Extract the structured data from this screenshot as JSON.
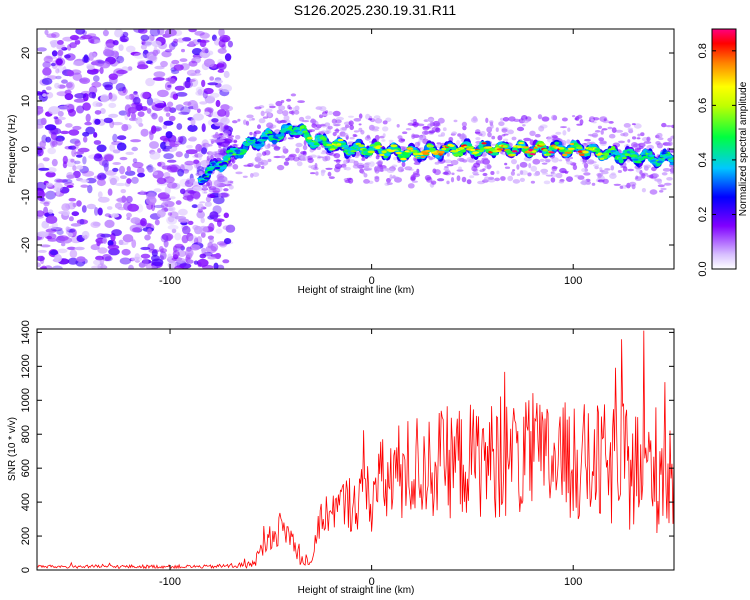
{
  "title": "S126.2025.230.19.31.R11",
  "chart_data": [
    {
      "type": "heatmap",
      "xlabel": "Height of straight line (km)",
      "ylabel": "Frequency (Hz)",
      "xlim": [
        -166,
        150
      ],
      "ylim": [
        -25,
        25
      ],
      "xticks": [
        -100,
        0,
        100
      ],
      "yticks": [
        -20,
        -10,
        0,
        10,
        20
      ],
      "colorbar": {
        "label": "Normalized spectral amplitude",
        "range": [
          0,
          0.88
        ],
        "ticks": [
          "0.0",
          "0.2",
          "0.4",
          "0.6",
          "0.8"
        ],
        "colors": [
          "#ffffff",
          "#b070ff",
          "#0000ff",
          "#00e0ff",
          "#00ff40",
          "#ffff00",
          "#ff8000",
          "#ff0000",
          "#ff0080"
        ]
      },
      "ridge": {
        "x": [
          -85,
          -75,
          -65,
          -55,
          -45,
          -38,
          -30,
          -20,
          -10,
          0,
          20,
          40,
          60,
          80,
          100,
          120,
          140,
          150
        ],
        "freq": [
          -6,
          -3,
          0,
          2,
          3,
          4.5,
          2,
          1,
          0,
          0,
          -1,
          0,
          0,
          0,
          0,
          -1,
          -2,
          -2
        ],
        "amplitude": [
          0.35,
          0.35,
          0.45,
          0.4,
          0.45,
          0.5,
          0.6,
          0.65,
          0.55,
          0.6,
          0.65,
          0.75,
          0.8,
          0.82,
          0.8,
          0.55,
          0.45,
          0.45
        ]
      },
      "noise_region": {
        "x_range": [
          -166,
          -75
        ],
        "amplitude": 0.2
      }
    },
    {
      "type": "line",
      "xlabel": "Height of straight line (km)",
      "ylabel": "SNR (10 * v/v)",
      "xlim": [
        -166,
        150
      ],
      "ylim": [
        0,
        1420
      ],
      "xticks": [
        -100,
        0,
        100
      ],
      "yticks": [
        0,
        200,
        400,
        600,
        800,
        1000,
        1200,
        1400
      ],
      "color": "#ff0000",
      "series": [
        {
          "name": "SNR",
          "envelope_x": [
            -166,
            -120,
            -80,
            -60,
            -55,
            -50,
            -45,
            -40,
            -35,
            -30,
            -25,
            -20,
            -15,
            -10,
            -5,
            0,
            5,
            10,
            20,
            30,
            50,
            70,
            90,
            110,
            130,
            150
          ],
          "envelope_mean": [
            20,
            20,
            20,
            30,
            100,
            200,
            250,
            200,
            50,
            50,
            300,
            350,
            380,
            400,
            420,
            450,
            500,
            550,
            600,
            620,
            650,
            650,
            650,
            620,
            600,
            600
          ],
          "envelope_spread": [
            10,
            10,
            10,
            20,
            60,
            80,
            100,
            80,
            30,
            30,
            100,
            120,
            150,
            180,
            200,
            250,
            280,
            300,
            320,
            330,
            340,
            350,
            350,
            360,
            380,
            400
          ]
        }
      ]
    }
  ]
}
